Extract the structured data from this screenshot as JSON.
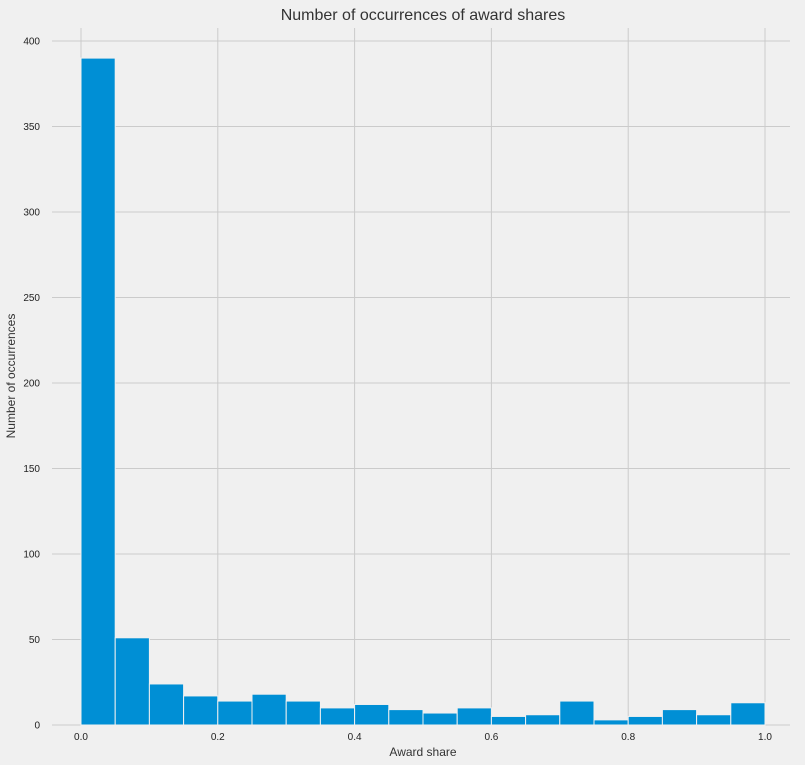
{
  "chart_data": {
    "type": "bar",
    "title": "Number of occurrences of award shares",
    "xlabel": "Award share",
    "ylabel": "Number of occurrences",
    "bin_edges": [
      0.0,
      0.05,
      0.1,
      0.15,
      0.2,
      0.25,
      0.3,
      0.35,
      0.4,
      0.45,
      0.5,
      0.55,
      0.6,
      0.65,
      0.7,
      0.75,
      0.8,
      0.85,
      0.9,
      0.95,
      1.0
    ],
    "values": [
      390,
      51,
      24,
      17,
      14,
      18,
      14,
      10,
      12,
      9,
      7,
      10,
      5,
      6,
      14,
      3,
      5,
      9,
      6,
      13
    ],
    "xlim": [
      0.0,
      1.0
    ],
    "ylim": [
      0,
      400
    ],
    "xticks": [
      0.0,
      0.2,
      0.4,
      0.6,
      0.8,
      1.0
    ],
    "xtick_labels": [
      "0.0",
      "0.2",
      "0.4",
      "0.6",
      "0.8",
      "1.0"
    ],
    "yticks": [
      0,
      50,
      100,
      150,
      200,
      250,
      300,
      350,
      400
    ],
    "ytick_labels": [
      "0",
      "50",
      "100",
      "150",
      "200",
      "250",
      "300",
      "350",
      "400"
    ],
    "grid": true,
    "colors": {
      "bar": "#008fd5",
      "background": "#f0f0f0",
      "grid": "#cbcbcb"
    }
  }
}
